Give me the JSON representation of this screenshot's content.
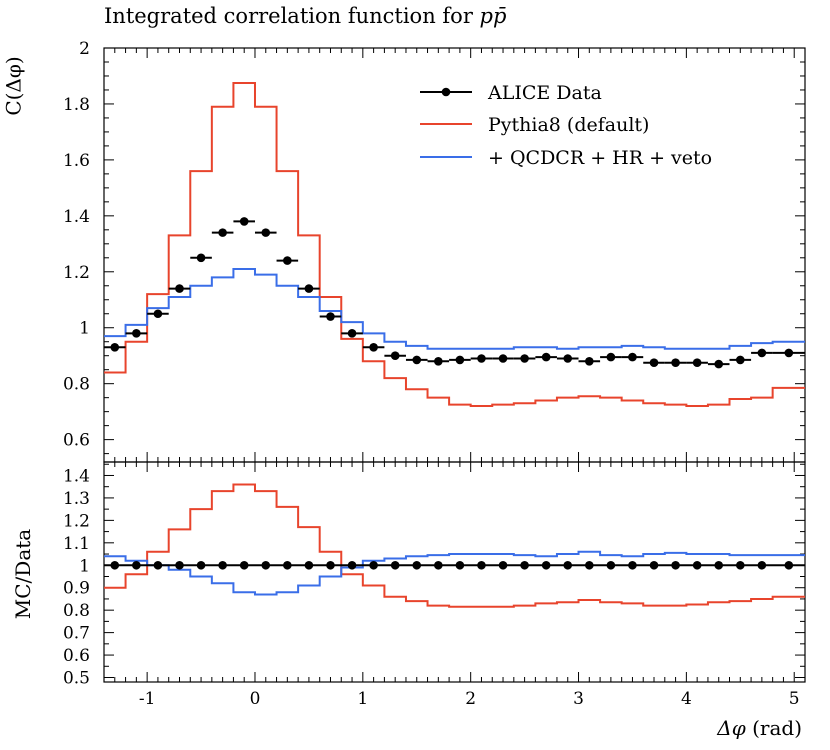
{
  "title": "Integrated correlation function for ",
  "title_math": "pp̄",
  "top_ylabel": "C(Δφ)",
  "bottom_ylabel": "MC/Data",
  "xlabel_sym": "Δφ",
  "xlabel_unit": " (rad)",
  "colors": {
    "data": "#000000",
    "pythia": "#e8442c",
    "qcdcr": "#3a6ee8"
  },
  "chart_data": [
    {
      "type": "line",
      "panel": "main",
      "ylabel": "C(Δφ)",
      "xlim": [
        -1.4,
        5.1
      ],
      "ylim": [
        0.52,
        2.0
      ],
      "xticks": [
        -1,
        0,
        1,
        2,
        3,
        4,
        5
      ],
      "xtick_labels": [
        "-1",
        "0",
        "1",
        "2",
        "3",
        "4",
        "5"
      ],
      "yticks": [
        0.6,
        0.8,
        1.0,
        1.2,
        1.4,
        1.6,
        1.8,
        2.0
      ],
      "ytick_labels": [
        "0.6",
        "0.8",
        "1",
        "1.2",
        "1.4",
        "1.6",
        "1.8",
        "2"
      ],
      "legend_position": "top-right",
      "bin_edges": [
        -1.4,
        -1.2,
        -1.0,
        -0.8,
        -0.6,
        -0.4,
        -0.2,
        0.0,
        0.2,
        0.4,
        0.6,
        0.8,
        1.0,
        1.2,
        1.4,
        1.6,
        1.8,
        2.0,
        2.2,
        2.4,
        2.6,
        2.8,
        3.0,
        3.2,
        3.4,
        3.6,
        3.8,
        4.0,
        4.2,
        4.4,
        4.6,
        4.8,
        5.1
      ],
      "series": [
        {
          "name": "ALICE Data",
          "style": "points",
          "x": [
            -1.5,
            -1.3,
            -1.1,
            -0.9,
            -0.7,
            -0.5,
            -0.3,
            -0.1,
            0.1,
            0.3,
            0.5,
            0.7,
            0.9,
            1.1,
            1.3,
            1.5,
            1.7,
            1.9,
            2.1,
            2.3,
            2.5,
            2.7,
            2.9,
            3.1,
            3.3,
            3.5,
            3.7,
            3.9,
            4.1,
            4.3,
            4.5,
            4.7,
            4.95
          ],
          "x_halfwidth": [
            0.1,
            0.1,
            0.1,
            0.1,
            0.1,
            0.1,
            0.1,
            0.1,
            0.1,
            0.1,
            0.1,
            0.1,
            0.1,
            0.1,
            0.1,
            0.1,
            0.1,
            0.1,
            0.1,
            0.1,
            0.1,
            0.1,
            0.1,
            0.1,
            0.1,
            0.1,
            0.1,
            0.1,
            0.1,
            0.1,
            0.1,
            0.1,
            0.15
          ],
          "y": [
            0.93,
            0.93,
            0.98,
            1.05,
            1.14,
            1.25,
            1.34,
            1.38,
            1.34,
            1.24,
            1.14,
            1.04,
            0.98,
            0.93,
            0.9,
            0.885,
            0.88,
            0.885,
            0.89,
            0.89,
            0.89,
            0.895,
            0.89,
            0.88,
            0.895,
            0.895,
            0.875,
            0.875,
            0.875,
            0.87,
            0.885,
            0.91,
            0.91
          ]
        },
        {
          "name": "Pythia8 (default)",
          "style": "step",
          "y": [
            0.84,
            0.95,
            1.12,
            1.33,
            1.56,
            1.79,
            1.875,
            1.79,
            1.56,
            1.33,
            1.11,
            0.96,
            0.88,
            0.82,
            0.78,
            0.75,
            0.725,
            0.72,
            0.725,
            0.73,
            0.74,
            0.75,
            0.755,
            0.75,
            0.74,
            0.73,
            0.725,
            0.72,
            0.725,
            0.745,
            0.75,
            0.785
          ]
        },
        {
          "name": "+ QCDCR + HR + veto",
          "style": "step",
          "y": [
            0.97,
            1.01,
            1.07,
            1.11,
            1.15,
            1.18,
            1.21,
            1.19,
            1.15,
            1.11,
            1.06,
            1.02,
            0.98,
            0.95,
            0.935,
            0.925,
            0.925,
            0.925,
            0.925,
            0.93,
            0.93,
            0.925,
            0.93,
            0.93,
            0.935,
            0.93,
            0.925,
            0.925,
            0.925,
            0.935,
            0.945,
            0.95
          ]
        }
      ]
    },
    {
      "type": "line",
      "panel": "ratio",
      "ylabel": "MC/Data",
      "xlabel": "Δφ (rad)",
      "xlim": [
        -1.4,
        5.1
      ],
      "ylim": [
        0.48,
        1.46
      ],
      "yticks": [
        0.5,
        0.6,
        0.7,
        0.8,
        0.9,
        1.0,
        1.1,
        1.2,
        1.3,
        1.4
      ],
      "ytick_labels": [
        "0.5",
        "0.6",
        "0.7",
        "0.8",
        "0.9",
        "1",
        "1.1",
        "1.2",
        "1.3",
        "1.4"
      ],
      "series": [
        {
          "name": "ALICE Data",
          "style": "points",
          "y_const": 1.0
        },
        {
          "name": "Pythia8 (default)",
          "style": "step",
          "y": [
            0.9,
            0.96,
            1.06,
            1.16,
            1.25,
            1.33,
            1.36,
            1.33,
            1.26,
            1.17,
            1.06,
            0.96,
            0.91,
            0.86,
            0.84,
            0.82,
            0.815,
            0.815,
            0.815,
            0.82,
            0.83,
            0.835,
            0.845,
            0.835,
            0.83,
            0.82,
            0.82,
            0.825,
            0.835,
            0.84,
            0.85,
            0.86
          ]
        },
        {
          "name": "+ QCDCR + HR + veto",
          "style": "step",
          "y": [
            1.04,
            1.02,
            1.0,
            0.98,
            0.95,
            0.92,
            0.88,
            0.87,
            0.88,
            0.91,
            0.95,
            0.99,
            1.02,
            1.03,
            1.04,
            1.045,
            1.05,
            1.05,
            1.05,
            1.045,
            1.04,
            1.05,
            1.06,
            1.045,
            1.04,
            1.05,
            1.055,
            1.05,
            1.05,
            1.045,
            1.045,
            1.045
          ]
        }
      ]
    }
  ]
}
